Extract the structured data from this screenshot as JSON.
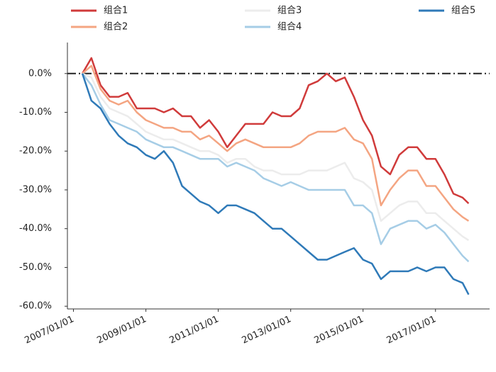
{
  "chart_data": {
    "type": "line",
    "x": [
      "2007/04/01",
      "2007/07/01",
      "2007/10/01",
      "2008/01/01",
      "2008/04/01",
      "2008/07/01",
      "2008/10/01",
      "2009/01/01",
      "2009/04/01",
      "2009/07/01",
      "2009/10/01",
      "2010/01/01",
      "2010/04/01",
      "2010/07/01",
      "2010/10/01",
      "2011/01/01",
      "2011/04/01",
      "2011/07/01",
      "2011/10/01",
      "2012/01/01",
      "2012/04/01",
      "2012/07/01",
      "2012/10/01",
      "2013/01/01",
      "2013/04/01",
      "2013/07/01",
      "2013/10/01",
      "2014/01/01",
      "2014/04/01",
      "2014/07/01",
      "2014/10/01",
      "2015/01/01",
      "2015/04/01",
      "2015/07/01",
      "2015/10/01",
      "2016/01/01",
      "2016/04/01",
      "2016/07/01",
      "2016/10/01",
      "2017/01/01",
      "2017/04/01",
      "2017/07/01",
      "2017/10/01",
      "2017/12/01"
    ],
    "series": [
      {
        "name": "组合1",
        "color": "#d03b3b",
        "values": [
          0,
          4,
          -3,
          -6,
          -6,
          -5,
          -9,
          -9,
          -9,
          -10,
          -9,
          -11,
          -11,
          -14,
          -12,
          -15,
          -19,
          -16,
          -13,
          -13,
          -13,
          -10,
          -11,
          -11,
          -9,
          -3,
          -2,
          0,
          -2,
          -1,
          -6,
          -12,
          -16,
          -24,
          -26,
          -21,
          -19,
          -19,
          -22,
          -22,
          -26,
          -31,
          -32,
          -33.5
        ]
      },
      {
        "name": "组合2",
        "color": "#f4a582",
        "values": [
          0,
          2,
          -4,
          -7,
          -8,
          -7,
          -10,
          -12,
          -13,
          -14,
          -14,
          -15,
          -15,
          -17,
          -16,
          -18,
          -20,
          -18,
          -17,
          -18,
          -19,
          -19,
          -19,
          -19,
          -18,
          -16,
          -15,
          -15,
          -15,
          -14,
          -17,
          -18,
          -22,
          -34,
          -30,
          -27,
          -25,
          -25,
          -29,
          -29,
          -32,
          -35,
          -37,
          -38
        ]
      },
      {
        "name": "组合3",
        "color": "#ececec",
        "values": [
          0,
          -1,
          -6,
          -9,
          -10,
          -11,
          -13,
          -15,
          -16,
          -17,
          -17,
          -18,
          -19,
          -20,
          -20,
          -21,
          -23,
          -22,
          -22,
          -24,
          -25,
          -25,
          -26,
          -26,
          -26,
          -25,
          -25,
          -25,
          -24,
          -23,
          -27,
          -28,
          -30,
          -38,
          -36,
          -34,
          -33,
          -33,
          -36,
          -36,
          -38,
          -40,
          -42,
          -43
        ]
      },
      {
        "name": "组合4",
        "color": "#a6cde6",
        "values": [
          0,
          -3,
          -8,
          -12,
          -13,
          -14,
          -15,
          -17,
          -18,
          -19,
          -19,
          -20,
          -21,
          -22,
          -22,
          -22,
          -24,
          -23,
          -24,
          -25,
          -27,
          -28,
          -29,
          -28,
          -29,
          -30,
          -30,
          -30,
          -30,
          -30,
          -34,
          -34,
          -36,
          -44,
          -40,
          -39,
          -38,
          -38,
          -40,
          -39,
          -41,
          -44,
          -47,
          -48.5
        ]
      },
      {
        "name": "组合5",
        "color": "#2f7ab8",
        "values": [
          0,
          -7,
          -9,
          -13,
          -16,
          -18,
          -19,
          -21,
          -22,
          -20,
          -23,
          -29,
          -31,
          -33,
          -34,
          -36,
          -34,
          -34,
          -35,
          -36,
          -38,
          -40,
          -40,
          -42,
          -44,
          -46,
          -48,
          -48,
          -47,
          -46,
          -45,
          -48,
          -49,
          -53,
          -51,
          -51,
          -51,
          -50,
          -51,
          -50,
          -50,
          -53,
          -54,
          -57
        ]
      }
    ],
    "xlim": [
      "2006/11/01",
      "2018/07/01"
    ],
    "xticks": [
      "2007/01/01",
      "2009/01/01",
      "2011/01/01",
      "2013/01/01",
      "2015/01/01",
      "2017/01/01"
    ],
    "ylim": [
      -60.7,
      8
    ],
    "yticks": [
      {
        "value": 0,
        "label": "0.0%"
      },
      {
        "value": -10,
        "label": "-10.0%"
      },
      {
        "value": -20,
        "label": "-20.0%"
      },
      {
        "value": -30,
        "label": "-30.0%"
      },
      {
        "value": -40,
        "label": "-40.0%"
      },
      {
        "value": -50,
        "label": "-50.0%"
      },
      {
        "value": -60,
        "label": "-60.0%"
      }
    ],
    "hline": 0
  }
}
